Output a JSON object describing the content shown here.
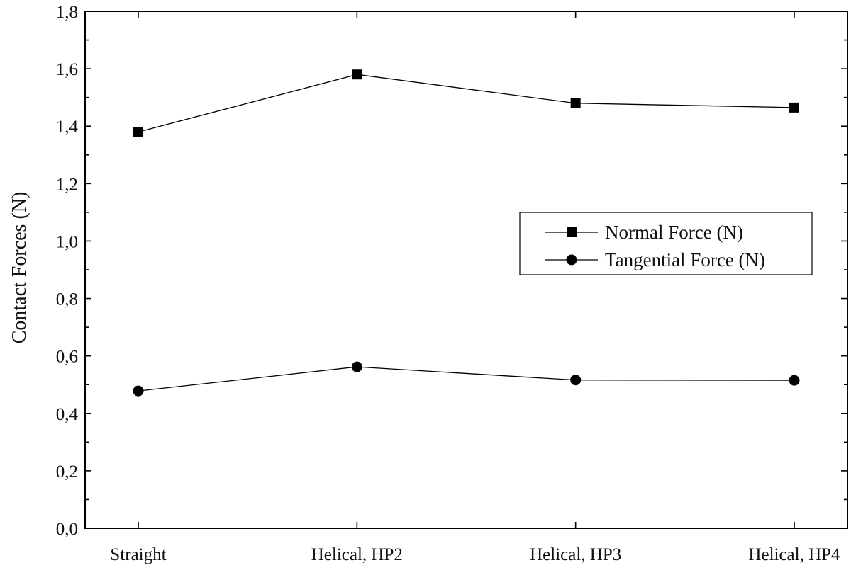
{
  "chart_data": {
    "type": "line",
    "title": "",
    "xlabel": "",
    "ylabel": "Contact Forces (N)",
    "categories": [
      "Straight",
      "Helical, HP2",
      "Helical, HP3",
      "Helical, HP4"
    ],
    "ylim": [
      0,
      1.8
    ],
    "yticks": [
      "0,0",
      "0,2",
      "0,4",
      "0,6",
      "0,8",
      "1,0",
      "1,2",
      "1,4",
      "1,6",
      "1,8"
    ],
    "grid": false,
    "legend_position": "center-right",
    "series": [
      {
        "name": "Normal Force (N)",
        "marker": "square",
        "values": [
          1.38,
          1.58,
          1.48,
          1.465
        ]
      },
      {
        "name": "Tangential Force (N)",
        "marker": "circle",
        "values": [
          0.478,
          0.562,
          0.516,
          0.515
        ]
      }
    ]
  }
}
